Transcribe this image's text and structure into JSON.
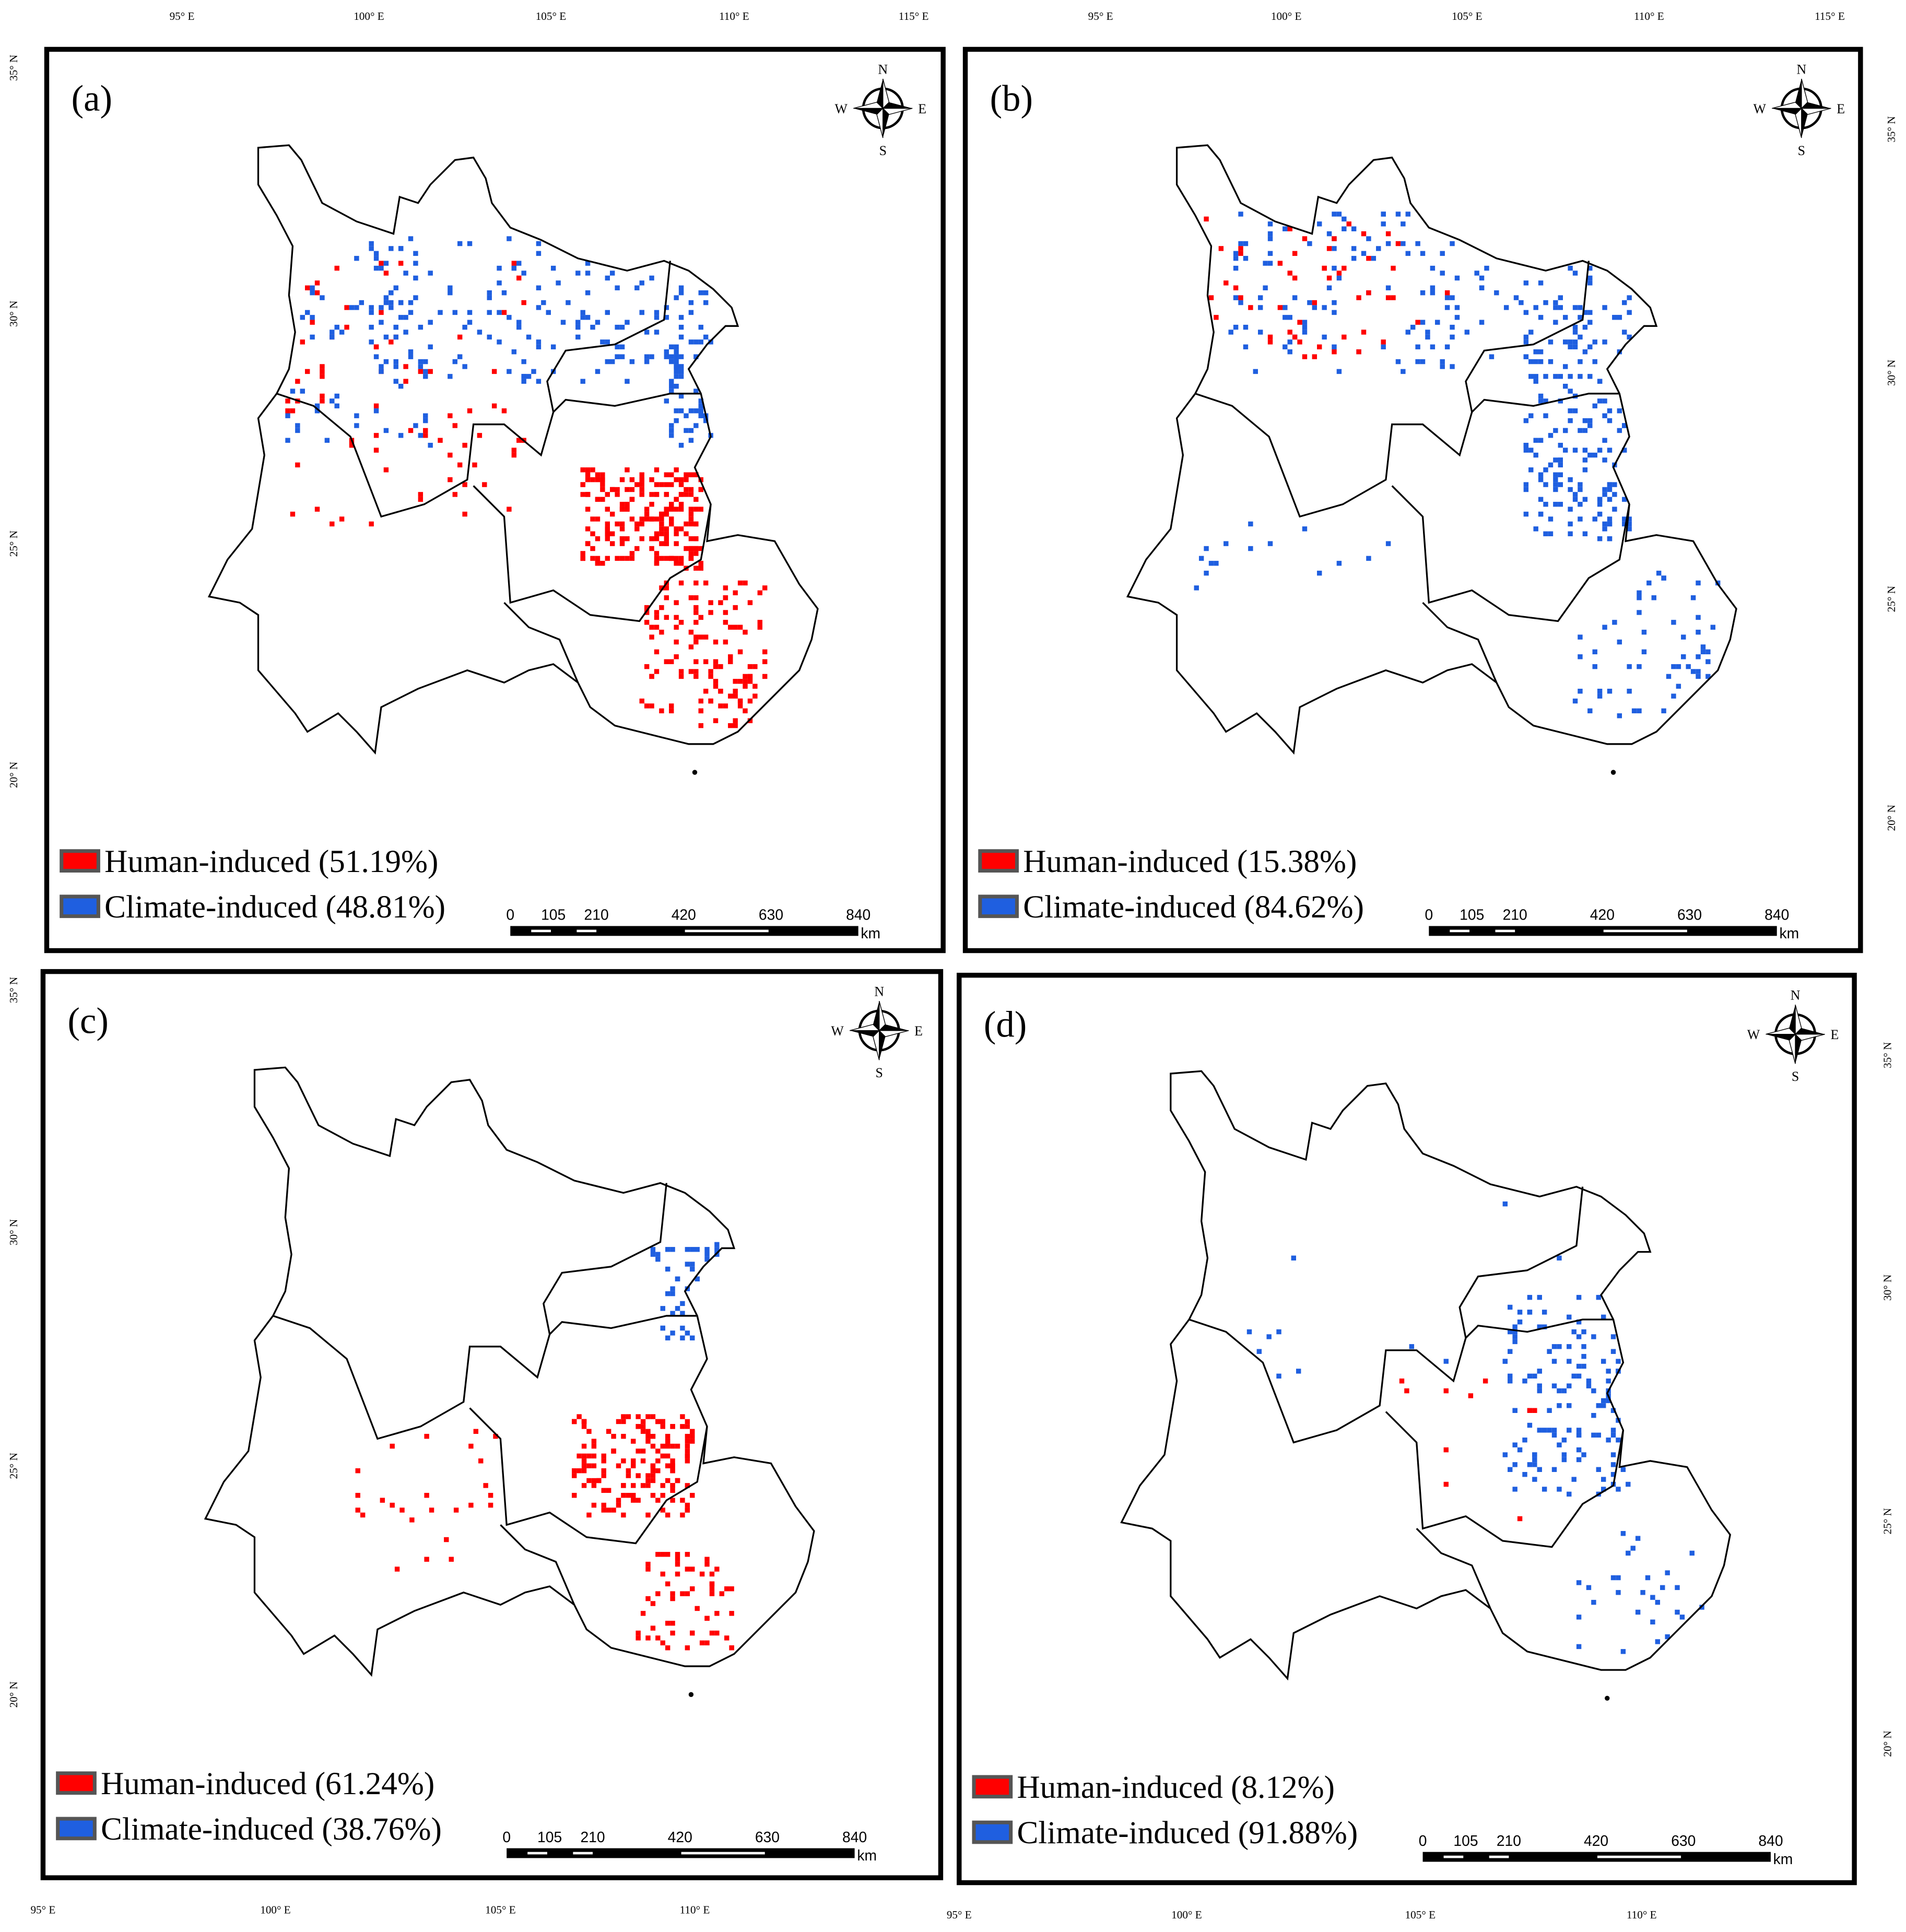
{
  "axes": {
    "top_left": [
      "95° E",
      "100° E",
      "105° E",
      "110° E",
      "115° E"
    ],
    "top_right": [
      "95° E",
      "100° E",
      "105° E",
      "110° E",
      "115° E"
    ],
    "bottom_left": [
      "95° E",
      "100° E",
      "105° E",
      "110° E"
    ],
    "bottom_right": [
      "95° E",
      "100° E",
      "105° E",
      "110° E"
    ],
    "left_top": [
      "35° N",
      "30° N",
      "25° N",
      "20° N"
    ],
    "left_bottom": [
      "35° N",
      "30° N",
      "25° N",
      "20° N"
    ],
    "right_top": [
      "35° N",
      "30° N",
      "25° N",
      "20° N"
    ],
    "right_bottom": [
      "35° N",
      "30° N",
      "25° N",
      "20° N"
    ]
  },
  "panels": [
    {
      "label": "(a)",
      "compass": {
        "n": "N",
        "w": "W",
        "e": "E",
        "s": "S"
      },
      "legend": {
        "human": "Human-induced (51.19%)",
        "climate": "Climate-induced (48.81%)"
      },
      "scale": {
        "ticks": [
          "0",
          "105",
          "210",
          "420",
          "630",
          "840"
        ],
        "unit": "km"
      }
    },
    {
      "label": "(b)",
      "compass": {
        "n": "N",
        "w": "W",
        "e": "E",
        "s": "S"
      },
      "legend": {
        "human": "Human-induced (15.38%)",
        "climate": "Climate-induced (84.62%)"
      },
      "scale": {
        "ticks": [
          "0",
          "105",
          "210",
          "420",
          "630",
          "840"
        ],
        "unit": "km"
      }
    },
    {
      "label": "(c)",
      "compass": {
        "n": "N",
        "w": "W",
        "e": "E",
        "s": "S"
      },
      "legend": {
        "human": "Human-induced (61.24%)",
        "climate": "Climate-induced (38.76%)"
      },
      "scale": {
        "ticks": [
          "0",
          "105",
          "210",
          "420",
          "630",
          "840"
        ],
        "unit": "km"
      }
    },
    {
      "label": "(d)",
      "compass": {
        "n": "N",
        "w": "W",
        "e": "E",
        "s": "S"
      },
      "legend": {
        "human": "Human-induced (8.12%)",
        "climate": "Climate-induced (91.88%)"
      },
      "scale": {
        "ticks": [
          "0",
          "105",
          "210",
          "420",
          "630",
          "840"
        ],
        "unit": "km"
      }
    }
  ]
}
